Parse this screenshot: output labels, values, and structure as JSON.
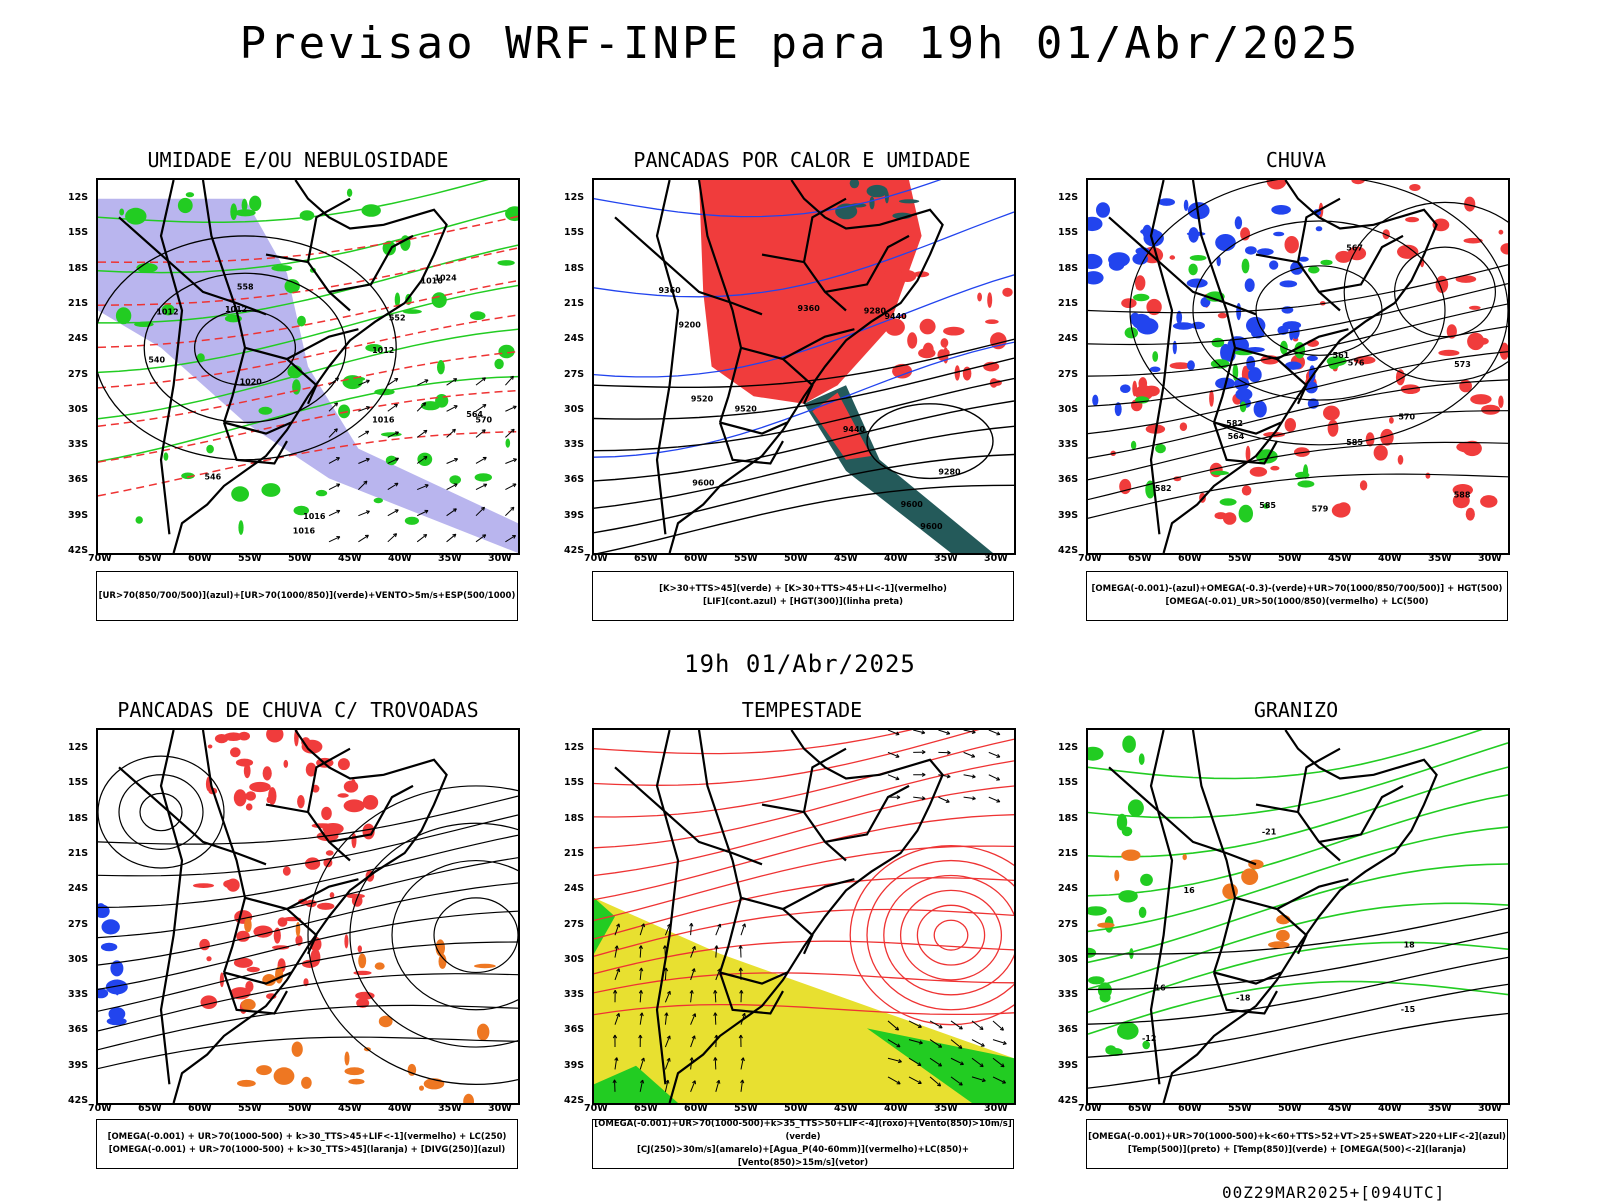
{
  "title": "Previsao WRF-INPE  para 19h 01/Abr/2025",
  "middle_title": "19h 01/Abr/2025",
  "footer": "00Z29MAR2025+[094UTC]",
  "lat_ticks": [
    "12S",
    "15S",
    "18S",
    "21S",
    "24S",
    "27S",
    "30S",
    "33S",
    "36S",
    "39S",
    "42S"
  ],
  "lon_ticks": [
    "70W",
    "65W",
    "60W",
    "55W",
    "50W",
    "45W",
    "40W",
    "35W",
    "30W"
  ],
  "panels": [
    {
      "title": "UMIDADE E/OU NEBULOSIDADE",
      "legend": [
        "[UR>70(850/700/500)](azul)+[UR>70(1000/850)](verde)+VENTO>5m/s+ESP(500/1000)"
      ],
      "contour_labels": [
        "1012",
        "1012",
        "1012",
        "1016",
        "1016",
        "1016",
        "1016",
        "1020",
        "1024",
        "570",
        "564",
        "558",
        "552",
        "546",
        "540"
      ]
    },
    {
      "title": "PANCADAS POR CALOR E UMIDADE",
      "legend": [
        "[K>30+TTS>45](verde) + [K>30+TTS>45+LI<-1](vermelho)",
        "[LIF](cont.azul) + [HGT(300)](linha preta)"
      ],
      "contour_labels": [
        "9600",
        "9520",
        "9440",
        "9360",
        "9280",
        "9200",
        "9600",
        "9520",
        "9440",
        "9360",
        "9280",
        "9600"
      ]
    },
    {
      "title": "CHUVA",
      "legend": [
        "[OMEGA(-0.001)-(azul)+OMEGA(-0.3)-(verde)+UR>70(1000/850/700/500)] + HGT(500)",
        "[OMEGA(-0.01)_UR>50(1000/850)(vermelho) + LC(500)"
      ],
      "contour_labels": [
        "585",
        "582",
        "579",
        "576",
        "573",
        "570",
        "567",
        "564",
        "561",
        "588",
        "585",
        "582"
      ]
    },
    {
      "title": "PANCADAS DE CHUVA C/ TROVOADAS",
      "legend": [
        "[OMEGA(-0.001) + UR>70(1000-500) + k>30_TTS>45+LIF<-1](vermelho) + LC(250)",
        "[OMEGA(-0.001) + UR>70(1000-500) + k>30_TTS>45](laranja) + [DIVG(250)](azul)"
      ],
      "contour_labels": []
    },
    {
      "title": "TEMPESTADE",
      "legend": [
        "[OMEGA(-0.001)+UR>70(1000-500)+k>35_TTS>50+LIF<-4](roxo)+[Vento(850)>10m/s](verde)",
        "[CJ(250)>30m/s](amarelo)+[Agua_P(40-60mm)](vermelho)+LC(850)+[Vento(850)>15m/s](vetor)"
      ],
      "contour_labels": []
    },
    {
      "title": "GRANIZO",
      "legend": [
        "[OMEGA(-0.001)+UR>70(1000-500)+k<60+TTS>52+VT>25+SWEAT>220+LIF<-2](azul)",
        "[Temp(500)](preto) + [Temp(850)](verde) + [OMEGA(500)<-2](laranja)"
      ],
      "contour_labels": [
        "-12",
        "-15",
        "-18",
        "-21",
        "16",
        "18",
        "16"
      ]
    }
  ],
  "colors": {
    "humidity_blue": "#b9b5ee",
    "humidity_green": "#22cc22",
    "thickness_red": "#ee3333",
    "instability_red": "#f03c3c",
    "dark_teal": "#245a5a",
    "lif_blue": "#2244ee",
    "jet_yellow": "#e8e030",
    "hail_orange": "#ee7722"
  }
}
